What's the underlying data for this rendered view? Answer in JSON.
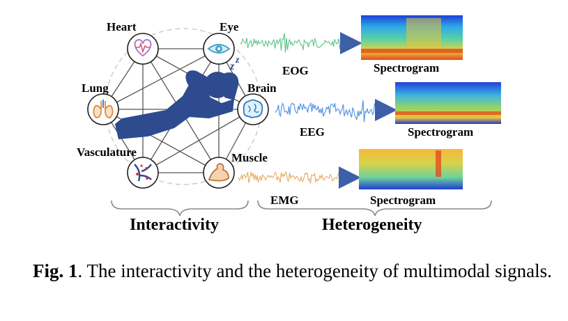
{
  "figure": {
    "organs": [
      {
        "label": "Heart",
        "icon": "heart-icon"
      },
      {
        "label": "Eye",
        "icon": "eye-icon"
      },
      {
        "label": "Lung",
        "icon": "lung-icon"
      },
      {
        "label": "Brain",
        "icon": "brain-icon"
      },
      {
        "label": "Vasculature",
        "icon": "vasculature-icon"
      },
      {
        "label": "Muscle",
        "icon": "muscle-icon"
      }
    ],
    "signals": [
      {
        "name": "EOG",
        "color": "#5cc28a",
        "spectrogram_label": "Spectrogram"
      },
      {
        "name": "EEG",
        "color": "#4a8fe0",
        "spectrogram_label": "Spectrogram"
      },
      {
        "name": "EMG",
        "color": "#e8a860",
        "spectrogram_label": "Spectrogram"
      }
    ],
    "sections": {
      "left": "Interactivity",
      "right": "Heterogeneity"
    },
    "colors": {
      "person": "#2e4b8f",
      "arrow": "#3d5fa8",
      "graph_edge": "#555555",
      "node_border": "#222222",
      "dashed_circle": "#cccccc"
    }
  },
  "caption": {
    "fig_number": "Fig. 1",
    "text": ". The interactivity and the heterogeneity of multimodal signals."
  }
}
